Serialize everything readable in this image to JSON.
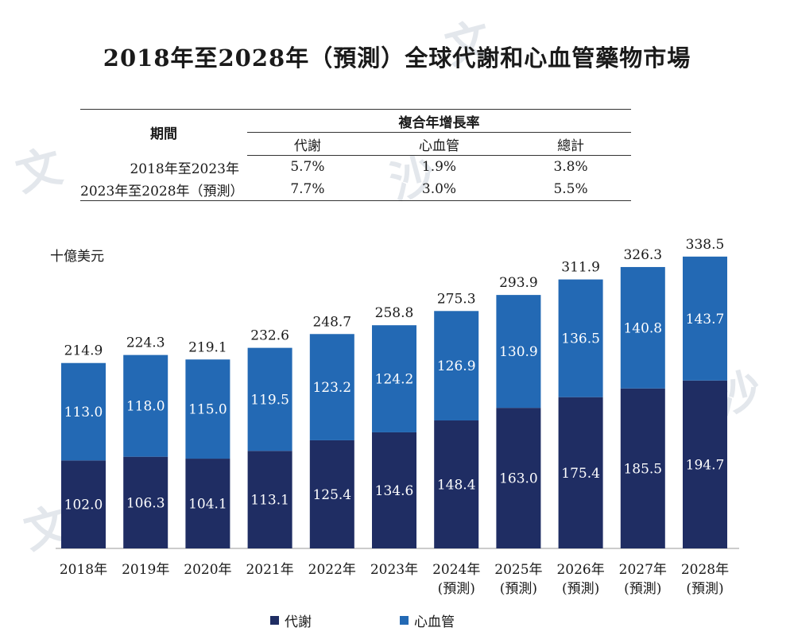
{
  "title": "2018年至2028年（預測）全球代謝和心血管藥物市場",
  "cagr_table": {
    "period_header": "期間",
    "group_header": "複合年增長率",
    "columns": [
      "代謝",
      "心血管",
      "總計"
    ],
    "rows": [
      {
        "period": "2018年至2023年",
        "values": [
          "5.7%",
          "1.9%",
          "3.8%"
        ]
      },
      {
        "period": "2023年至2028年（預測）",
        "values": [
          "7.7%",
          "3.0%",
          "5.5%"
        ]
      }
    ]
  },
  "chart_data": {
    "type": "bar",
    "stacked": true,
    "unit_label": "十億美元",
    "categories": [
      [
        "2018年"
      ],
      [
        "2019年"
      ],
      [
        "2020年"
      ],
      [
        "2021年"
      ],
      [
        "2022年"
      ],
      [
        "2023年"
      ],
      [
        "2024年",
        "(預測)"
      ],
      [
        "2025年",
        "(預測)"
      ],
      [
        "2026年",
        "(預測)"
      ],
      [
        "2027年",
        "(預測)"
      ],
      [
        "2028年",
        "(預測)"
      ]
    ],
    "series": [
      {
        "name": "代謝",
        "color": "#1f2d63",
        "values": [
          102.0,
          106.3,
          104.1,
          113.1,
          125.4,
          134.6,
          148.4,
          163.0,
          175.4,
          185.5,
          194.7
        ]
      },
      {
        "name": "心血管",
        "color": "#2369b4",
        "values": [
          113.0,
          118.0,
          115.0,
          119.5,
          123.2,
          124.2,
          126.9,
          130.9,
          136.5,
          140.8,
          143.7
        ]
      }
    ],
    "totals": [
      214.9,
      224.3,
      219.1,
      232.6,
      248.7,
      258.8,
      275.3,
      293.9,
      311.9,
      326.3,
      338.5
    ],
    "value_format_decimals": 1,
    "legend_position": "bottom",
    "grid": false
  }
}
